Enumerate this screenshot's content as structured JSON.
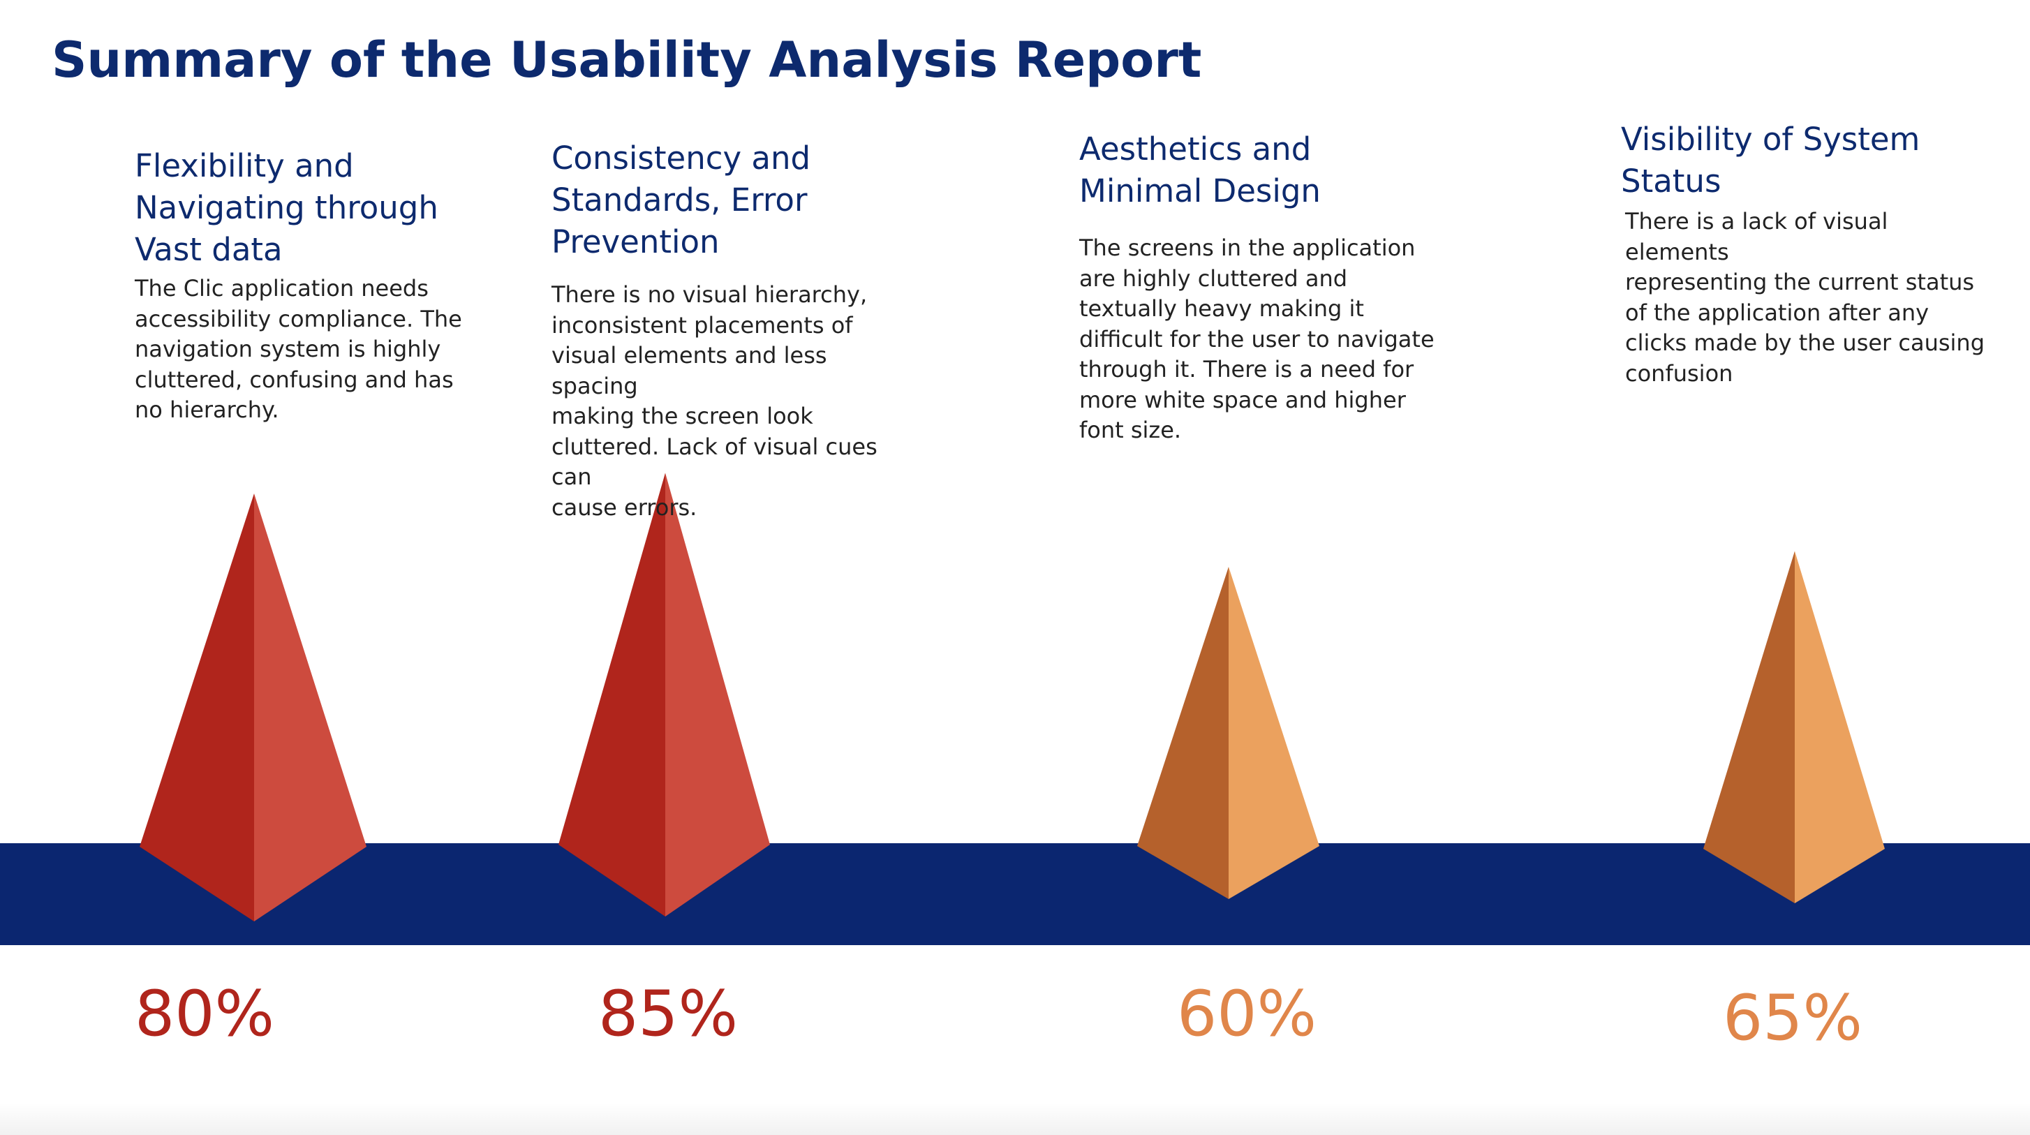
{
  "title": "Summary of the Usability Analysis Report",
  "colors": {
    "title": "#0d2a6e",
    "band": "#0b2670",
    "red_dark": "#b0251c",
    "red_light": "#cd4b3e",
    "orange_dark": "#b5612c",
    "orange_light": "#eba15e",
    "red_text": "#b0251c",
    "orange_text": "#e0864a"
  },
  "items": [
    {
      "heading": "Flexibility and\nNavigating through\nVast data",
      "description": "The Clic application needs\naccessibility compliance. The\nnavigation system is highly\ncluttered, confusing and has\nno hierarchy.",
      "percent_label": "80%",
      "tone": "red"
    },
    {
      "heading": "Consistency and\nStandards, Error\nPrevention",
      "description": "There is no visual hierarchy,\ninconsistent placements of\nvisual elements and less spacing\nmaking the screen look\ncluttered. Lack of visual cues can\ncause errors.",
      "percent_label": "85%",
      "tone": "red"
    },
    {
      "heading": "Aesthetics and\nMinimal Design",
      "description": "The screens in the application\nare highly cluttered and\ntextually heavy making it\ndifficult for the user to navigate\nthrough it. There is a need for\nmore white space and higher\nfont size.",
      "percent_label": "60%",
      "tone": "orange"
    },
    {
      "heading": "Visibility of System\nStatus",
      "description": "There is a lack of visual elements\nrepresenting the current status\nof the application after any\nclicks made by the user causing\nconfusion",
      "percent_label": "65%",
      "tone": "orange"
    }
  ],
  "chart_data": {
    "type": "bar",
    "categories": [
      "Flexibility and Navigating through Vast data",
      "Consistency and Standards, Error Prevention",
      "Aesthetics and Minimal Design",
      "Visibility of System Status"
    ],
    "values": [
      80,
      85,
      60,
      65
    ],
    "unit": "%",
    "title": "Summary of the Usability Analysis Report"
  }
}
